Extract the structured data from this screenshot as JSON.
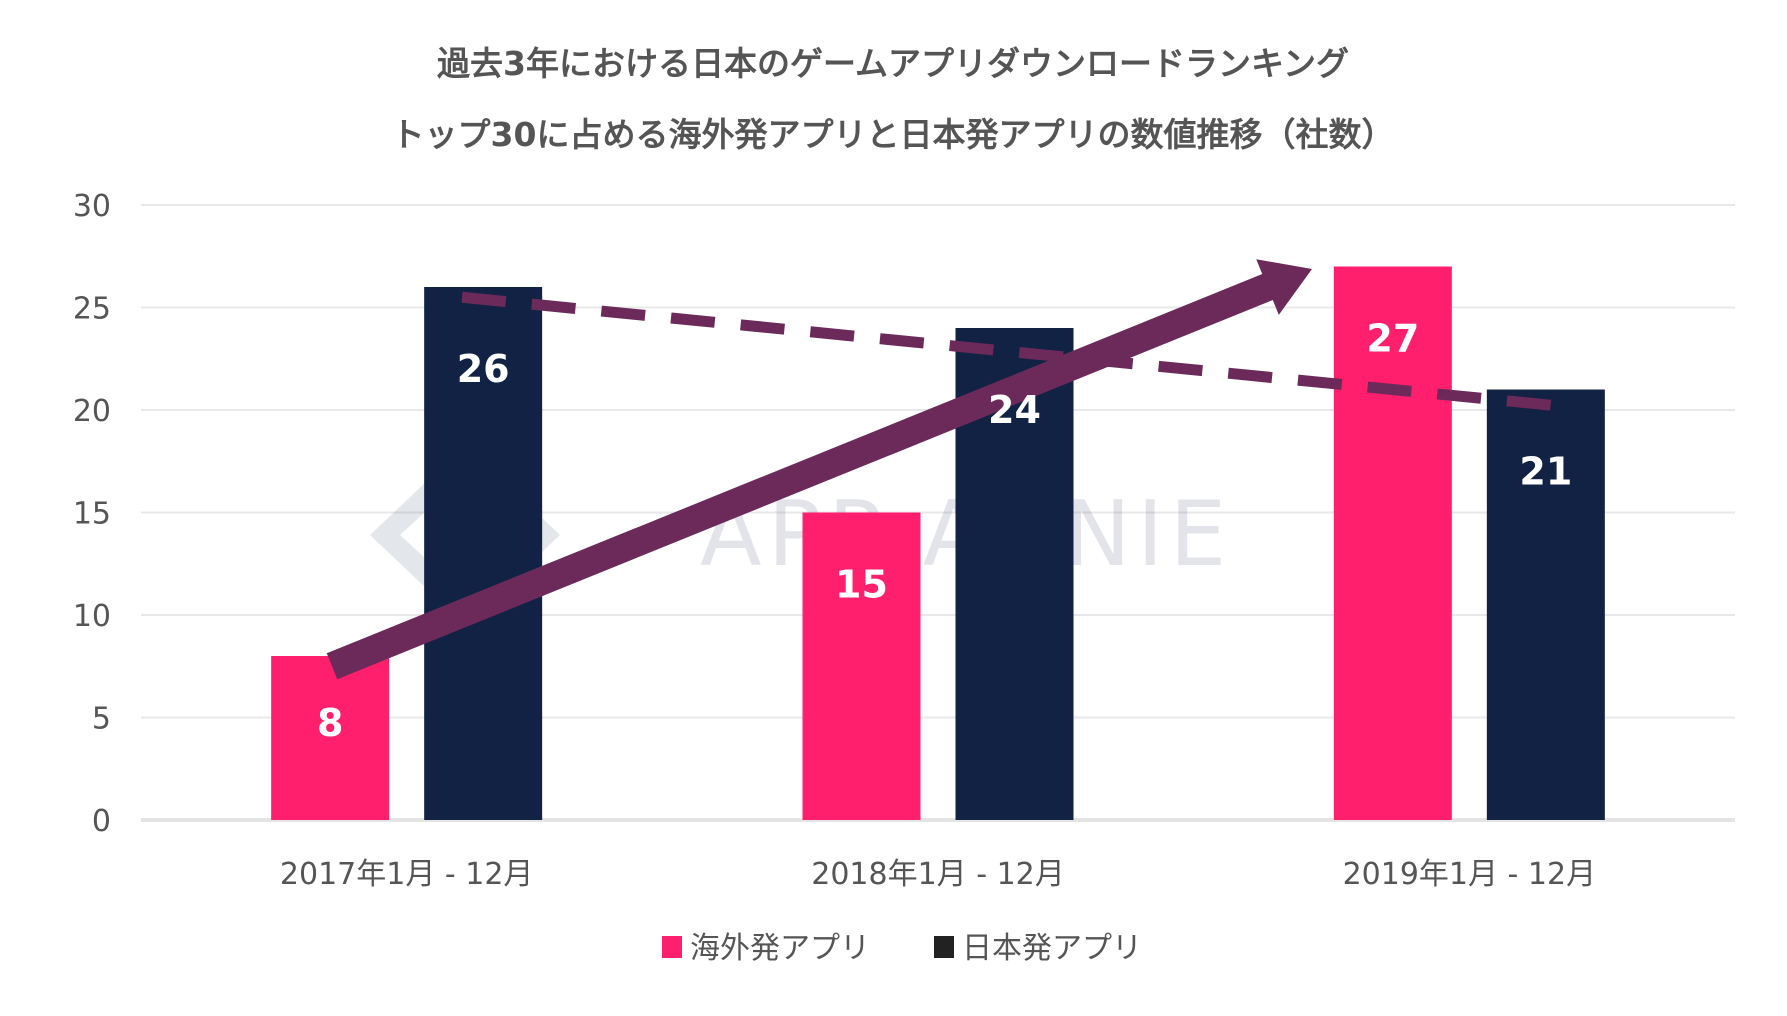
{
  "chart_data": {
    "type": "bar",
    "title": [
      "過去3年における日本のゲームアプリダウンロードランキング",
      "トップ30に占める海外発アプリと日本発アプリの数値推移（社数）"
    ],
    "categories": [
      "2017年1月 - 12月",
      "2018年1月 - 12月",
      "2019年1月 - 12月"
    ],
    "series": [
      {
        "name": "海外発アプリ",
        "values": [
          8,
          15,
          27
        ],
        "color": "#ff1f6d"
      },
      {
        "name": "日本発アプリ",
        "values": [
          26,
          24,
          21
        ],
        "color": "#112244"
      }
    ],
    "ylim": [
      0,
      30
    ],
    "yticks": [
      0,
      5,
      10,
      15,
      20,
      25,
      30
    ],
    "grid": true,
    "legend": "bottom",
    "annotations": {
      "arrow": {
        "from": [
          0,
          7.5
        ],
        "to": [
          2,
          27
        ],
        "meaning": "海外発 upward trend",
        "color": "#6b2a5a"
      },
      "dashed_trend": {
        "from": [
          0,
          25.5
        ],
        "to": [
          2,
          20.2
        ],
        "color": "#6b2a5a"
      }
    },
    "watermark": "APP ANNIE"
  }
}
